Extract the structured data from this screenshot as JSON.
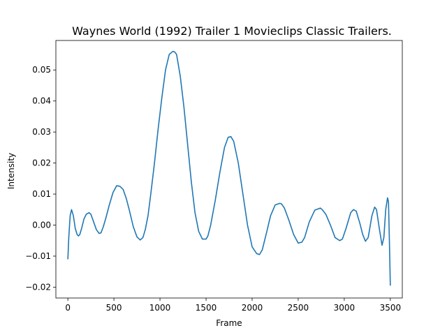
{
  "chart_data": {
    "type": "line",
    "title": "Waynes World (1992) Trailer 1  Movieclips Classic Trailers.",
    "xlabel": "Frame",
    "ylabel": "Intensity",
    "xlim": [
      -130,
      3630
    ],
    "ylim": [
      -0.0235,
      0.0595
    ],
    "xticks": [
      0,
      500,
      1000,
      1500,
      2000,
      2500,
      3000,
      3500
    ],
    "xtick_labels": [
      "0",
      "500",
      "1000",
      "1500",
      "2000",
      "2500",
      "3000",
      "3500"
    ],
    "yticks": [
      -0.02,
      -0.01,
      0.0,
      0.01,
      0.02,
      0.03,
      0.04,
      0.05
    ],
    "ytick_labels": [
      "−0.02",
      "−0.01",
      "0.00",
      "0.01",
      "0.02",
      "0.03",
      "0.04",
      "0.05"
    ],
    "grid": false,
    "series": [
      {
        "color": "#1f77b4",
        "x": [
          0,
          10,
          25,
          40,
          60,
          80,
          100,
          115,
          130,
          150,
          175,
          200,
          230,
          250,
          280,
          310,
          340,
          360,
          385,
          410,
          450,
          490,
          530,
          565,
          600,
          635,
          670,
          710,
          750,
          785,
          815,
          840,
          870,
          900,
          940,
          980,
          1020,
          1060,
          1100,
          1140,
          1160,
          1180,
          1220,
          1260,
          1300,
          1340,
          1380,
          1420,
          1460,
          1500,
          1520,
          1550,
          1600,
          1650,
          1700,
          1740,
          1770,
          1800,
          1850,
          1900,
          1950,
          2000,
          2050,
          2080,
          2110,
          2160,
          2200,
          2250,
          2300,
          2320,
          2350,
          2400,
          2450,
          2500,
          2540,
          2570,
          2620,
          2680,
          2740,
          2760,
          2800,
          2850,
          2900,
          2950,
          2980,
          3020,
          3070,
          3100,
          3130,
          3170,
          3200,
          3230,
          3260,
          3300,
          3330,
          3350,
          3380,
          3410,
          3430,
          3450,
          3470,
          3480,
          3490,
          3500
        ],
        "y": [
          -0.011,
          -0.004,
          0.003,
          0.005,
          0.003,
          -0.001,
          -0.003,
          -0.0035,
          -0.003,
          -0.001,
          0.002,
          0.0035,
          0.004,
          0.0035,
          0.001,
          -0.0015,
          -0.0027,
          -0.0025,
          -0.0005,
          0.002,
          0.0065,
          0.0105,
          0.0127,
          0.0125,
          0.0115,
          0.0085,
          0.0045,
          -0.0005,
          -0.0038,
          -0.0048,
          -0.004,
          -0.0015,
          0.003,
          0.01,
          0.02,
          0.031,
          0.041,
          0.05,
          0.055,
          0.056,
          0.0558,
          0.055,
          0.048,
          0.038,
          0.026,
          0.014,
          0.004,
          -0.002,
          -0.0045,
          -0.0045,
          -0.0035,
          0.0,
          0.008,
          0.017,
          0.025,
          0.0283,
          0.0285,
          0.027,
          0.02,
          0.01,
          0.0,
          -0.007,
          -0.0092,
          -0.0095,
          -0.008,
          -0.002,
          0.003,
          0.0065,
          0.007,
          0.0068,
          0.0055,
          0.0015,
          -0.003,
          -0.0058,
          -0.0055,
          -0.004,
          0.001,
          0.0048,
          0.0055,
          0.005,
          0.0035,
          0.0,
          -0.004,
          -0.005,
          -0.0045,
          -0.001,
          0.004,
          0.005,
          0.0045,
          0.0005,
          -0.003,
          -0.0052,
          -0.004,
          0.003,
          0.0058,
          0.005,
          -0.001,
          -0.0065,
          -0.004,
          0.005,
          0.0088,
          0.0075,
          -0.005,
          -0.0195
        ]
      }
    ]
  }
}
